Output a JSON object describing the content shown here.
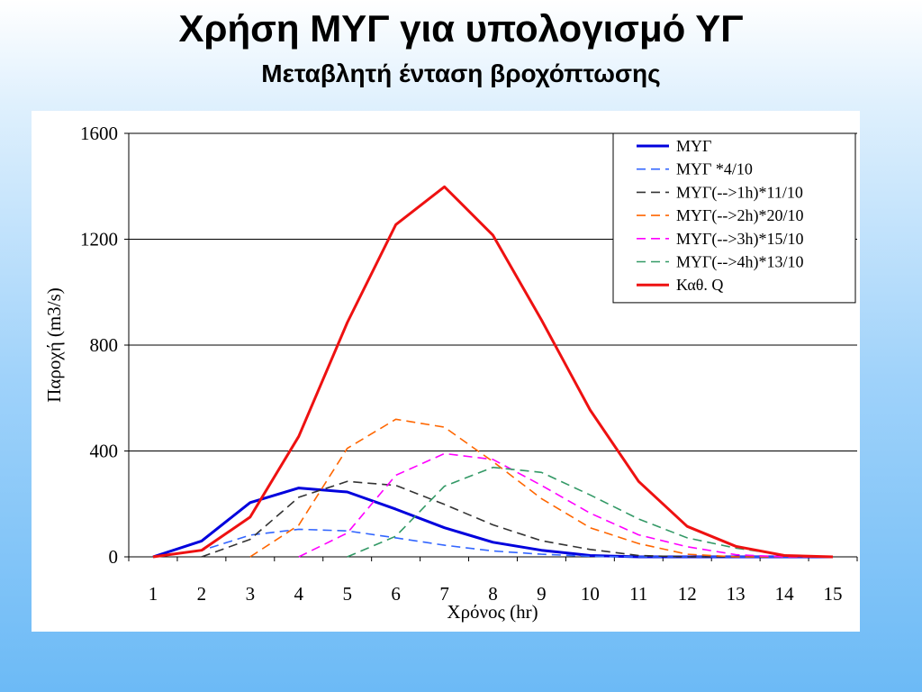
{
  "slide": {
    "title": "Χρήση ΜΥΓ για υπολογισμό ΥΓ",
    "subtitle": "Μεταβλητή ένταση βροχόπτωσης"
  },
  "chart_data": {
    "type": "line",
    "title": "",
    "xlabel": "Χρόνος (hr)",
    "ylabel": "Παροχή (m3/s)",
    "x": [
      1,
      2,
      3,
      4,
      5,
      6,
      7,
      8,
      9,
      10,
      11,
      12,
      13,
      14,
      15
    ],
    "xlim": [
      1,
      15
    ],
    "ylim": [
      0,
      1600
    ],
    "yticks": [
      0,
      400,
      800,
      1200,
      1600
    ],
    "grid": "horizontal",
    "legend_position": "top-right",
    "series": [
      {
        "name": "ΜΥΓ",
        "color": "#0000dd",
        "dash": "solid",
        "values": [
          0,
          60,
          205,
          260,
          245,
          180,
          110,
          55,
          25,
          5,
          0,
          0,
          0,
          0,
          0
        ]
      },
      {
        "name": "ΜΥΓ *4/10",
        "color": "#3366ff",
        "dash": "dashed",
        "values": [
          0,
          24,
          82,
          104,
          98,
          72,
          44,
          22,
          10,
          2,
          0,
          0,
          0,
          0,
          0
        ]
      },
      {
        "name": "ΜΥΓ(-->1h)*11/10",
        "color": "#333333",
        "dash": "dashed",
        "values": [
          null,
          0,
          66,
          225,
          285,
          270,
          198,
          121,
          61,
          28,
          5,
          0,
          0,
          0,
          0
        ]
      },
      {
        "name": "ΜΥΓ(-->2h)*20/10",
        "color": "#ff6600",
        "dash": "dashed",
        "values": [
          null,
          null,
          0,
          120,
          410,
          520,
          490,
          360,
          220,
          110,
          50,
          10,
          0,
          0,
          0
        ]
      },
      {
        "name": "ΜΥΓ(-->3h)*15/10",
        "color": "#ff00ff",
        "dash": "dashed",
        "values": [
          null,
          null,
          null,
          0,
          90,
          308,
          390,
          368,
          270,
          165,
          83,
          38,
          8,
          0,
          0
        ]
      },
      {
        "name": "ΜΥΓ(-->4h)*13/10",
        "color": "#339966",
        "dash": "dashed",
        "values": [
          null,
          null,
          null,
          null,
          0,
          78,
          267,
          338,
          319,
          234,
          143,
          72,
          33,
          7,
          0
        ]
      },
      {
        "name": "Καθ. Q",
        "color": "#ee1111",
        "dash": "solid",
        "values": [
          0,
          25,
          150,
          455,
          885,
          1255,
          1398,
          1215,
          895,
          555,
          285,
          115,
          40,
          5,
          0
        ]
      }
    ]
  }
}
